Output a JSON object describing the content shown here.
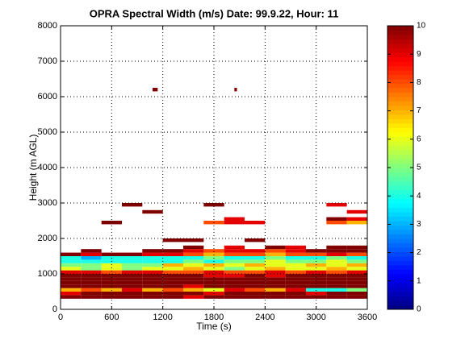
{
  "chart_data": {
    "type": "heatmap",
    "title": "OPRA Spectral Width (m/s)  Date: 99.9.22, Hour: 11",
    "xlabel": "Time (s)",
    "ylabel": "Height (m AGL)",
    "colormap": "jet",
    "clim": [
      0,
      10
    ],
    "cticks": [
      0,
      1,
      2,
      3,
      4,
      5,
      6,
      7,
      8,
      9,
      10
    ],
    "xlim": [
      0,
      3600
    ],
    "xticks": [
      0,
      600,
      1200,
      1800,
      2400,
      3000,
      3600
    ],
    "ylim": [
      0,
      8000
    ],
    "yticks": [
      0,
      1000,
      2000,
      3000,
      4000,
      5000,
      6000,
      7000,
      8000
    ],
    "grid": true,
    "xedges": [
      0,
      240,
      480,
      720,
      960,
      1200,
      1440,
      1680,
      1920,
      2160,
      2400,
      2640,
      2880,
      3120,
      3360,
      3600
    ],
    "yedges": [
      300,
      400,
      500,
      600,
      700,
      800,
      900,
      1000,
      1100,
      1200,
      1300,
      1400,
      1500,
      1600,
      1700,
      1800,
      1900,
      2000,
      2100,
      2200,
      2300,
      2400,
      2500,
      2600,
      2700,
      2800,
      2900,
      3000
    ],
    "z": [
      [
        10,
        10,
        10,
        10,
        10,
        10,
        9,
        10,
        10,
        10,
        10,
        10,
        10,
        10,
        10
      ],
      [
        9,
        10,
        10,
        10,
        10,
        10,
        10,
        9,
        10,
        10,
        10,
        10,
        9,
        10,
        10
      ],
      [
        7,
        8,
        7,
        9,
        7,
        8,
        7,
        6,
        9,
        8,
        7,
        9,
        4,
        4,
        5
      ],
      [
        10,
        10,
        10,
        10,
        10,
        10,
        9,
        10,
        10,
        10,
        10,
        10,
        10,
        10,
        10
      ],
      [
        10,
        10,
        10,
        10,
        10,
        10,
        10,
        10,
        10,
        10,
        10,
        10,
        10,
        10,
        10
      ],
      [
        10,
        10,
        10,
        10,
        10,
        10,
        10,
        10,
        10,
        10,
        10,
        10,
        10,
        10,
        10
      ],
      [
        10,
        10,
        10,
        10,
        10,
        10,
        10,
        9,
        9,
        10,
        9,
        10,
        10,
        10,
        10
      ],
      [
        9,
        9,
        8,
        9,
        9,
        8,
        8,
        9,
        8,
        8,
        9,
        8,
        9,
        8,
        9
      ],
      [
        6,
        5,
        6,
        5,
        6,
        6,
        7,
        6,
        5,
        6,
        7,
        6,
        6,
        7,
        6
      ],
      [
        5,
        5,
        6,
        5,
        5,
        7,
        6,
        7,
        6,
        7,
        6,
        6,
        7,
        6,
        7
      ],
      [
        4,
        4,
        4,
        4,
        4,
        4,
        5,
        4,
        5,
        5,
        6,
        5,
        5,
        6,
        5
      ],
      [
        4,
        3,
        4,
        4,
        4,
        4,
        4,
        5,
        4,
        4,
        5,
        4,
        4,
        5,
        4
      ],
      [
        10,
        9,
        10,
        10,
        9,
        9,
        8,
        7,
        8,
        8,
        7,
        8,
        8,
        9,
        8
      ],
      [
        null,
        10,
        null,
        null,
        10,
        10,
        9,
        8,
        9,
        9,
        8,
        9,
        10,
        10,
        10
      ],
      [
        null,
        null,
        null,
        null,
        null,
        null,
        10,
        null,
        9,
        null,
        10,
        9,
        null,
        10,
        10
      ],
      [
        null,
        null,
        null,
        null,
        null,
        null,
        null,
        null,
        null,
        null,
        null,
        null,
        null,
        null,
        null
      ],
      [
        null,
        null,
        null,
        null,
        null,
        10,
        10,
        null,
        null,
        10,
        null,
        null,
        null,
        null,
        null
      ],
      [
        null,
        null,
        null,
        null,
        null,
        null,
        null,
        null,
        null,
        null,
        null,
        null,
        null,
        null,
        null
      ],
      [
        null,
        null,
        null,
        null,
        null,
        null,
        null,
        null,
        null,
        null,
        null,
        null,
        null,
        null,
        null
      ],
      [
        null,
        null,
        null,
        null,
        null,
        null,
        null,
        null,
        null,
        null,
        null,
        null,
        null,
        null,
        null
      ],
      [
        null,
        null,
        null,
        null,
        null,
        null,
        null,
        null,
        null,
        null,
        null,
        null,
        null,
        null,
        null
      ],
      [
        null,
        null,
        10,
        null,
        null,
        null,
        null,
        8,
        9,
        9,
        null,
        null,
        null,
        8,
        7
      ],
      [
        null,
        null,
        null,
        null,
        null,
        null,
        null,
        null,
        9,
        null,
        null,
        null,
        null,
        10,
        9
      ],
      [
        null,
        null,
        null,
        null,
        null,
        null,
        null,
        null,
        null,
        null,
        null,
        null,
        null,
        null,
        null
      ],
      [
        null,
        null,
        null,
        null,
        10,
        null,
        null,
        null,
        null,
        null,
        null,
        null,
        null,
        null,
        9
      ],
      [
        null,
        null,
        null,
        null,
        null,
        null,
        null,
        null,
        null,
        null,
        null,
        null,
        null,
        null,
        null
      ],
      [
        null,
        null,
        null,
        10,
        null,
        null,
        null,
        10,
        null,
        null,
        null,
        null,
        null,
        9,
        null
      ]
    ],
    "extra_cells": [
      {
        "x0": 1080,
        "x1": 1140,
        "y0": 6150,
        "y1": 6250,
        "value": 10
      },
      {
        "x0": 2040,
        "x1": 2070,
        "y0": 6150,
        "y1": 6250,
        "value": 10
      }
    ]
  }
}
